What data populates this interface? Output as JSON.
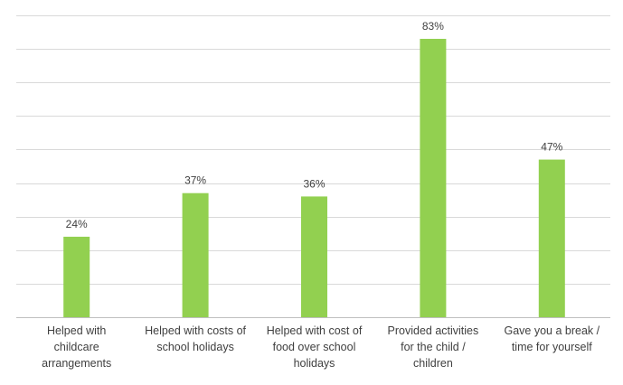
{
  "chart_data": {
    "type": "bar",
    "categories": [
      [
        "Helped with",
        "childcare",
        "arrangements"
      ],
      [
        "Helped with costs of",
        "school holidays"
      ],
      [
        "Helped with cost of",
        "food over school",
        "holidays"
      ],
      [
        "Provided activities",
        "for the child /",
        "children"
      ],
      [
        "Gave you a break /",
        "time for yourself"
      ]
    ],
    "values": [
      24,
      37,
      36,
      83,
      47
    ],
    "data_labels": [
      "24%",
      "37%",
      "36%",
      "83%",
      "47%"
    ],
    "ylim": [
      0,
      90
    ],
    "gridline_step": 10,
    "grid": true,
    "bar_color": "#92d050",
    "title": "",
    "xlabel": "",
    "ylabel": ""
  }
}
